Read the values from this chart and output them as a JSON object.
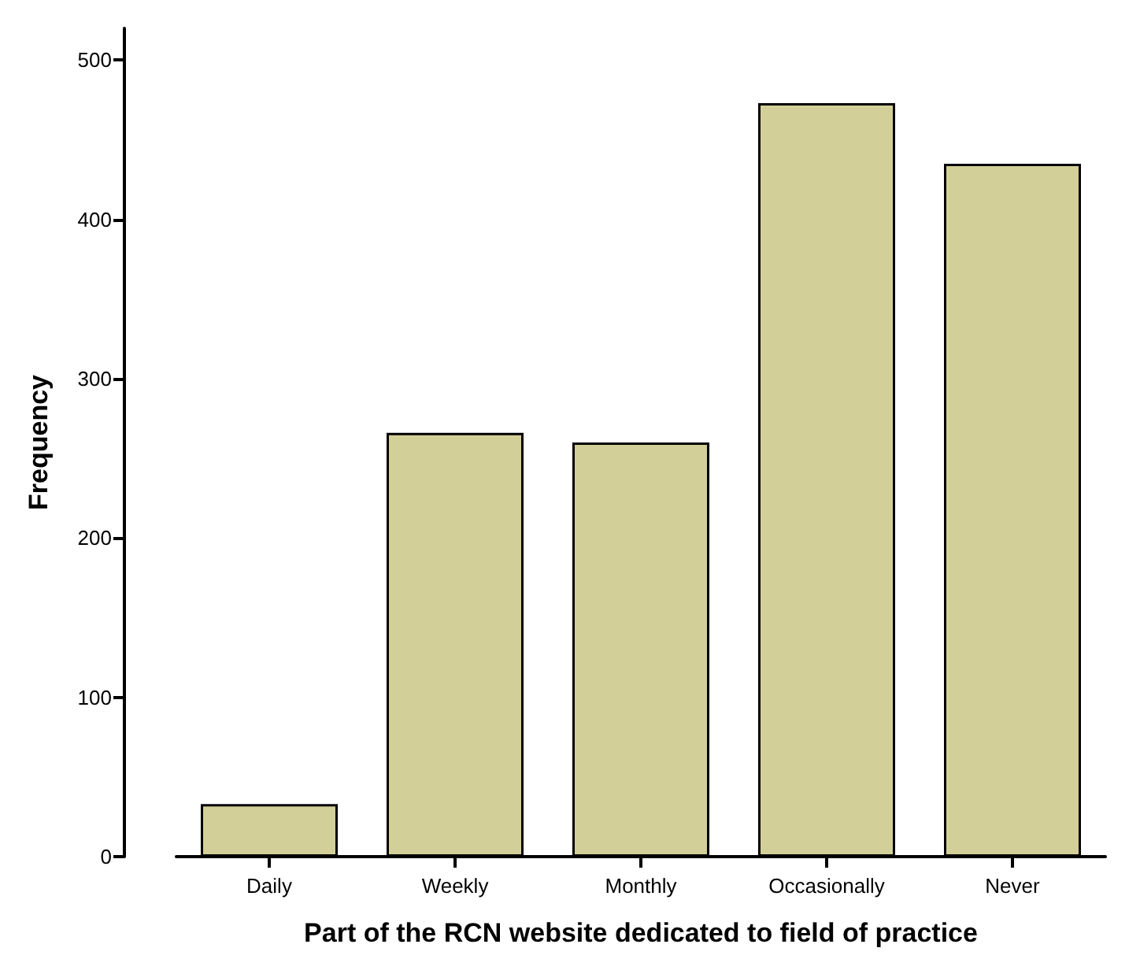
{
  "chart_data": {
    "type": "bar",
    "xlabel": "Part of the RCN website dedicated to field of practice",
    "ylabel": "Frequency",
    "categories": [
      "Daily",
      "Weekly",
      "Monthly",
      "Occasionally",
      "Never"
    ],
    "values": [
      33,
      266,
      260,
      473,
      435
    ],
    "color": "#d3cf98",
    "ylim": [
      0,
      520
    ],
    "yticks": [
      0,
      100,
      200,
      300,
      400,
      500
    ],
    "grid": false
  }
}
